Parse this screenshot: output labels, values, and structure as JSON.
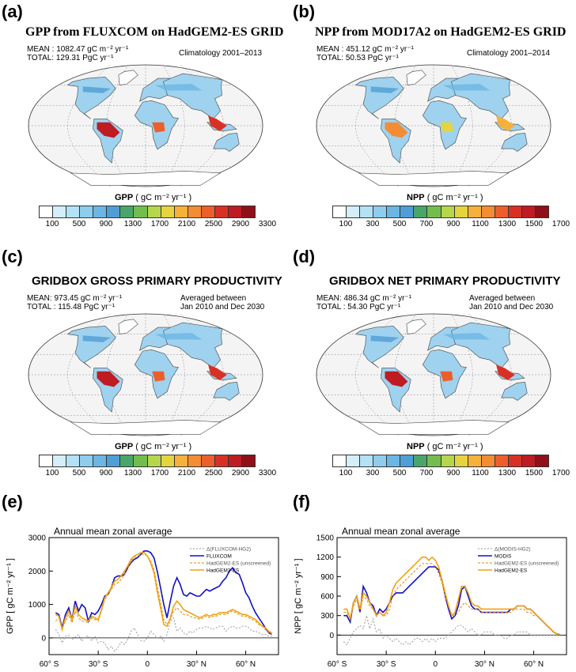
{
  "panels": {
    "a": {
      "label": "(a)",
      "title": "GPP from FLUXCOM on HadGEM2-ES GRID",
      "mean": "MEAN : 1082.47 gC m⁻² yr⁻¹",
      "total": "TOTAL: 129.31  PgC yr⁻¹",
      "period": "Climatology 2001–2013",
      "var": "GPP",
      "units": "( gC m⁻² yr⁻¹ )"
    },
    "b": {
      "label": "(b)",
      "title": "NPP from MOD17A2 on HadGEM2-ES GRID",
      "mean": "MEAN : 451.12 gC m⁻² yr⁻¹",
      "total": "TOTAL: 50.53  PgC yr⁻¹",
      "period": "Climatology 2001–2014",
      "var": "NPP",
      "units": "( gC m⁻² yr⁻¹ )"
    },
    "c": {
      "label": "(c)",
      "title": "GRIDBOX GROSS PRIMARY PRODUCTIVITY",
      "mean": "MEAN: 973.45 gC m⁻² yr⁻¹",
      "total": "TOTAL : 115.48  PgC yr⁻¹",
      "period1": "Averaged between",
      "period2": "Jan 2010 and Dec 2030",
      "var": "GPP",
      "units": "( gC m⁻² yr⁻¹ )"
    },
    "d": {
      "label": "(d)",
      "title": "GRIDBOX NET PRIMARY PRODUCTIVITY",
      "mean": "MEAN: 486.34 gC m⁻² yr⁻¹",
      "total": "TOTAL : 54.30  PgC yr⁻¹",
      "period1": "Averaged between",
      "period2": "Jan 2010 and Dec 2030",
      "var": "NPP",
      "units": "( gC m⁻² yr⁻¹ )"
    },
    "e": {
      "label": "(e)"
    },
    "f": {
      "label": "(f)"
    }
  },
  "colorbars": {
    "gpp_ticks": [
      "100",
      "500",
      "900",
      "1300",
      "1700",
      "2100",
      "2500",
      "2900",
      "3300"
    ],
    "npp_ticks": [
      "100",
      "300",
      "500",
      "700",
      "900",
      "1100",
      "1300",
      "1500",
      "1700"
    ],
    "colors": [
      "#ffffff",
      "#d4eefa",
      "#b3e1f5",
      "#8fcdee",
      "#6bb6e4",
      "#4f9ed6",
      "#4aa56a",
      "#73bd4e",
      "#b6d64c",
      "#e5d43f",
      "#f5b13a",
      "#f48c33",
      "#ec5f2c",
      "#d93026",
      "#bf1b22",
      "#8f1018"
    ]
  },
  "chart_data": [
    {
      "type": "line",
      "title": "Annual mean zonal average",
      "ylabel": "GPP  [ gC m⁻² yr⁻¹ ]",
      "ylim": [
        -500,
        3000
      ],
      "yticks": [
        "3000",
        "2000",
        "1000",
        "0"
      ],
      "yticks_v": [
        3000,
        2000,
        1000,
        0
      ],
      "xlim": [
        -60,
        80
      ],
      "xticks": [
        "60° S",
        "30° S",
        "0",
        "30° N",
        "60° N"
      ],
      "xticks_v": [
        -60,
        -30,
        0,
        30,
        60
      ],
      "legend_position": "top-right",
      "x": [
        -56,
        -54,
        -52,
        -50,
        -48,
        -46,
        -44,
        -42,
        -40,
        -38,
        -36,
        -34,
        -32,
        -30,
        -28,
        -26,
        -24,
        -22,
        -20,
        -18,
        -16,
        -14,
        -12,
        -10,
        -8,
        -6,
        -4,
        -2,
        0,
        2,
        4,
        6,
        8,
        10,
        12,
        14,
        16,
        18,
        20,
        22,
        24,
        26,
        28,
        30,
        32,
        34,
        36,
        38,
        40,
        42,
        44,
        46,
        48,
        50,
        52,
        54,
        56,
        58,
        60,
        62,
        64,
        66,
        68,
        70,
        72,
        74,
        76
      ],
      "series": [
        {
          "name": "Δ(FLUXCOM-HG2)",
          "color": "#9a9a9a",
          "dash": "2,2",
          "values": [
            250,
            100,
            -150,
            50,
            80,
            -50,
            20,
            100,
            -100,
            30,
            60,
            -80,
            40,
            -150,
            -100,
            -150,
            -350,
            -250,
            -400,
            -300,
            -120,
            -200,
            -50,
            200,
            300,
            100,
            -80,
            -100,
            0,
            200,
            100,
            0,
            50,
            -100,
            100,
            500,
            600,
            200,
            300,
            150,
            100,
            200,
            150,
            250,
            300,
            300,
            350,
            300,
            250,
            300,
            350,
            350,
            200,
            300,
            350,
            300,
            300,
            350,
            350,
            300,
            200,
            200,
            150,
            100,
            100,
            50,
            50
          ]
        },
        {
          "name": "FLUXCOM",
          "color": "#1010c8",
          "dash": "",
          "values": [
            750,
            700,
            300,
            700,
            900,
            550,
            1100,
            800,
            1000,
            900,
            500,
            750,
            700,
            800,
            1000,
            1250,
            1300,
            1500,
            1800,
            1850,
            1850,
            1900,
            2100,
            2250,
            2350,
            2400,
            2500,
            2600,
            2600,
            2550,
            2400,
            2000,
            1500,
            1000,
            600,
            1100,
            1550,
            1800,
            1600,
            1300,
            1250,
            1350,
            1300,
            1250,
            1250,
            1350,
            1450,
            1400,
            1450,
            1500,
            1550,
            1700,
            1800,
            2000,
            2100,
            1950,
            1900,
            1650,
            1350,
            1200,
            950,
            750,
            600,
            450,
            300,
            150,
            100
          ]
        },
        {
          "name": "HadGEM2-ES (unscreened)",
          "color": "#e08a00",
          "dash": "3,2",
          "values": [
            500,
            600,
            300,
            500,
            700,
            450,
            800,
            600,
            500,
            500,
            450,
            600,
            550,
            500,
            800,
            1150,
            1300,
            1450,
            1600,
            1650,
            1750,
            1900,
            2050,
            2300,
            2400,
            2450,
            2500,
            2500,
            2450,
            2300,
            2050,
            1550,
            1050,
            550,
            400,
            550,
            800,
            900,
            800,
            700,
            700,
            650,
            600,
            600,
            550,
            600,
            650,
            600,
            650,
            650,
            700,
            700,
            700,
            750,
            800,
            750,
            700,
            650,
            650,
            600,
            550,
            500,
            400,
            350,
            250,
            150,
            100
          ]
        },
        {
          "name": "HadGEM2-ES",
          "color": "#f2a011",
          "dash": "",
          "values": [
            700,
            650,
            250,
            600,
            800,
            550,
            950,
            700,
            600,
            550,
            500,
            650,
            600,
            550,
            850,
            1200,
            1350,
            1500,
            1700,
            1750,
            1850,
            2000,
            2150,
            2350,
            2450,
            2500,
            2550,
            2550,
            2450,
            2250,
            1950,
            1400,
            900,
            400,
            350,
            600,
            950,
            1100,
            1000,
            850,
            800,
            750,
            700,
            650,
            600,
            650,
            700,
            650,
            700,
            700,
            750,
            750,
            750,
            800,
            850,
            800,
            750,
            700,
            700,
            650,
            600,
            550,
            450,
            350,
            300,
            200,
            150
          ]
        }
      ]
    },
    {
      "type": "line",
      "title": "Annual mean zonal average",
      "ylabel": "NPP  [ gC m⁻² yr⁻¹ ]",
      "ylim": [
        -300,
        1500
      ],
      "yticks": [
        "1500",
        "1200",
        "900",
        "600",
        "300",
        "0"
      ],
      "yticks_v": [
        1500,
        1200,
        900,
        600,
        300,
        0
      ],
      "xlim": [
        -60,
        80
      ],
      "xticks": [
        "60° S",
        "30° S",
        "0",
        "30° N",
        "60° N"
      ],
      "xticks_v": [
        -60,
        -30,
        0,
        30,
        60
      ],
      "legend_position": "top-right",
      "x": [
        -56,
        -54,
        -52,
        -50,
        -48,
        -46,
        -44,
        -42,
        -40,
        -38,
        -36,
        -34,
        -32,
        -30,
        -28,
        -26,
        -24,
        -22,
        -20,
        -18,
        -16,
        -14,
        -12,
        -10,
        -8,
        -6,
        -4,
        -2,
        0,
        2,
        4,
        6,
        8,
        10,
        12,
        14,
        16,
        18,
        20,
        22,
        24,
        26,
        28,
        30,
        32,
        34,
        36,
        38,
        40,
        42,
        44,
        46,
        48,
        50,
        52,
        54,
        56,
        58,
        60,
        62,
        64,
        66,
        68,
        70,
        72,
        74,
        76
      ],
      "series": [
        {
          "name": "Δ(MODIS-HG2)",
          "color": "#9a9a9a",
          "dash": "2,2",
          "values": [
            -100,
            -150,
            -50,
            50,
            100,
            150,
            100,
            300,
            100,
            250,
            50,
            100,
            -50,
            0,
            -50,
            -100,
            -50,
            -100,
            -150,
            -100,
            -150,
            -100,
            -50,
            -50,
            -100,
            -50,
            -100,
            -50,
            -100,
            -50,
            -50,
            -50,
            0,
            50,
            100,
            150,
            150,
            100,
            50,
            100,
            50,
            0,
            0,
            50,
            50,
            50,
            0,
            0,
            0,
            -50,
            -50,
            0,
            0,
            50,
            50,
            50,
            50,
            0,
            0,
            0,
            0,
            0,
            0,
            0,
            0,
            0,
            0
          ]
        },
        {
          "name": "MODIS",
          "color": "#1010c8",
          "dash": "",
          "values": [
            300,
            300,
            200,
            500,
            600,
            350,
            750,
            650,
            500,
            450,
            300,
            400,
            350,
            400,
            500,
            600,
            650,
            650,
            650,
            700,
            750,
            800,
            850,
            900,
            950,
            1000,
            1050,
            1050,
            1050,
            1000,
            850,
            600,
            400,
            250,
            300,
            450,
            700,
            750,
            600,
            450,
            400,
            400,
            350,
            350,
            350,
            350,
            350,
            350,
            350,
            350,
            350,
            400,
            400,
            450,
            450,
            450,
            400,
            400,
            350,
            300,
            250,
            200,
            150,
            100,
            50,
            20,
            10
          ]
        },
        {
          "name": "HadGEM2-ES (unscreened)",
          "color": "#e08a00",
          "dash": "3,2",
          "values": [
            350,
            350,
            250,
            450,
            550,
            350,
            600,
            550,
            450,
            400,
            300,
            350,
            300,
            300,
            400,
            600,
            700,
            750,
            800,
            850,
            900,
            950,
            1000,
            1050,
            1100,
            1100,
            1100,
            1100,
            1050,
            950,
            800,
            600,
            450,
            300,
            300,
            350,
            450,
            500,
            450,
            400,
            400,
            400,
            350,
            350,
            350,
            350,
            350,
            350,
            350,
            350,
            350,
            350,
            400,
            400,
            400,
            400,
            350,
            350,
            300,
            300,
            250,
            200,
            150,
            100,
            50,
            20,
            10
          ]
        },
        {
          "name": "HadGEM2-ES",
          "color": "#f2a011",
          "dash": "",
          "values": [
            400,
            400,
            250,
            500,
            600,
            400,
            650,
            600,
            500,
            400,
            300,
            350,
            300,
            350,
            500,
            700,
            800,
            850,
            900,
            950,
            1000,
            1050,
            1100,
            1150,
            1200,
            1200,
            1150,
            1200,
            1150,
            1050,
            850,
            650,
            450,
            300,
            350,
            550,
            750,
            750,
            650,
            500,
            450,
            450,
            400,
            400,
            400,
            400,
            400,
            400,
            400,
            400,
            400,
            400,
            400,
            450,
            450,
            450,
            400,
            400,
            350,
            300,
            250,
            200,
            150,
            100,
            50,
            20,
            10
          ]
        }
      ]
    }
  ]
}
